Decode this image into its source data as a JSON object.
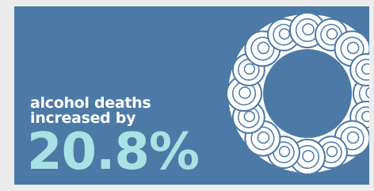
{
  "text": {
    "line1": "alcohol deaths",
    "line2": "increased by",
    "figure": "20.8%"
  }
}
